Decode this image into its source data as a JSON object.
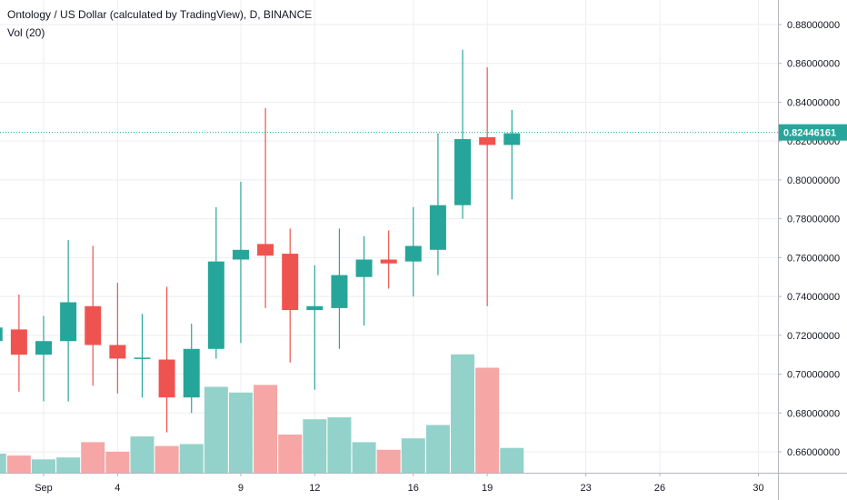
{
  "legend": {
    "title": "Ontology / US Dollar (calculated by TradingView), D, BINANCE",
    "indicator": "Vol (20)"
  },
  "colors": {
    "up": "#26a69a",
    "down": "#ef5350",
    "up_volume": "#93d2ca",
    "down_volume": "#f5a6a5",
    "grid": "#eceef2",
    "axis_line": "#b2b5be",
    "text": "#131722"
  },
  "chart_data": {
    "type": "candlestick",
    "symbol": "ONTUSD",
    "timeframe": "D",
    "exchange": "BINANCE",
    "y_axis": {
      "range": [
        0.648,
        0.886
      ],
      "ticks": [
        "0.66000000",
        "0.68000000",
        "0.70000000",
        "0.72000000",
        "0.74000000",
        "0.76000000",
        "0.78000000",
        "0.80000000",
        "0.82000000",
        "0.84000000",
        "0.86000000",
        "0.88000000"
      ],
      "tick_values": [
        0.66,
        0.68,
        0.7,
        0.72,
        0.74,
        0.76,
        0.78,
        0.8,
        0.82,
        0.84,
        0.86,
        0.88
      ]
    },
    "x_axis": {
      "ticks": [
        {
          "label": "Sep",
          "date": "2019-09-01"
        },
        {
          "label": "4",
          "date": "2019-09-04"
        },
        {
          "label": "9",
          "date": "2019-09-09"
        },
        {
          "label": "12",
          "date": "2019-09-12"
        },
        {
          "label": "16",
          "date": "2019-09-16"
        },
        {
          "label": "19",
          "date": "2019-09-19"
        },
        {
          "label": "23",
          "date": "2019-09-23"
        },
        {
          "label": "26",
          "date": "2019-09-26"
        },
        {
          "label": "30",
          "date": "2019-09-30"
        }
      ]
    },
    "last_price": {
      "value": 0.82446161,
      "label": "0.82446161"
    },
    "candles": [
      {
        "date": "2019-08-30",
        "open": 0.717,
        "high": 0.724,
        "low": 0.71,
        "close": 0.724
      },
      {
        "date": "2019-08-31",
        "open": 0.723,
        "high": 0.741,
        "low": 0.691,
        "close": 0.71
      },
      {
        "date": "2019-09-01",
        "open": 0.71,
        "high": 0.73,
        "low": 0.686,
        "close": 0.717
      },
      {
        "date": "2019-09-02",
        "open": 0.717,
        "high": 0.769,
        "low": 0.686,
        "close": 0.737
      },
      {
        "date": "2019-09-03",
        "open": 0.735,
        "high": 0.766,
        "low": 0.694,
        "close": 0.715
      },
      {
        "date": "2019-09-04",
        "open": 0.715,
        "high": 0.747,
        "low": 0.69,
        "close": 0.708
      },
      {
        "date": "2019-09-05",
        "open": 0.708,
        "high": 0.731,
        "low": 0.688,
        "close": 0.7085
      },
      {
        "date": "2019-09-06",
        "open": 0.7075,
        "high": 0.745,
        "low": 0.67,
        "close": 0.688
      },
      {
        "date": "2019-09-07",
        "open": 0.688,
        "high": 0.726,
        "low": 0.68,
        "close": 0.713
      },
      {
        "date": "2019-09-08",
        "open": 0.713,
        "high": 0.786,
        "low": 0.708,
        "close": 0.758
      },
      {
        "date": "2019-09-09",
        "open": 0.759,
        "high": 0.799,
        "low": 0.716,
        "close": 0.764
      },
      {
        "date": "2019-09-10",
        "open": 0.767,
        "high": 0.837,
        "low": 0.734,
        "close": 0.761
      },
      {
        "date": "2019-09-11",
        "open": 0.762,
        "high": 0.775,
        "low": 0.706,
        "close": 0.733
      },
      {
        "date": "2019-09-12",
        "open": 0.733,
        "high": 0.756,
        "low": 0.692,
        "close": 0.735
      },
      {
        "date": "2019-09-13",
        "open": 0.734,
        "high": 0.775,
        "low": 0.713,
        "close": 0.751
      },
      {
        "date": "2019-09-14",
        "open": 0.75,
        "high": 0.771,
        "low": 0.725,
        "close": 0.759
      },
      {
        "date": "2019-09-15",
        "open": 0.759,
        "high": 0.774,
        "low": 0.744,
        "close": 0.757
      },
      {
        "date": "2019-09-16",
        "open": 0.758,
        "high": 0.786,
        "low": 0.74,
        "close": 0.766
      },
      {
        "date": "2019-09-17",
        "open": 0.764,
        "high": 0.824,
        "low": 0.751,
        "close": 0.787
      },
      {
        "date": "2019-09-18",
        "open": 0.787,
        "high": 0.867,
        "low": 0.78,
        "close": 0.821
      },
      {
        "date": "2019-09-19",
        "open": 0.822,
        "high": 0.858,
        "low": 0.735,
        "close": 0.818
      },
      {
        "date": "2019-09-20",
        "open": 0.818,
        "high": 0.836,
        "low": 0.79,
        "close": 0.824
      }
    ],
    "volume": [
      {
        "date": "2019-08-30",
        "value": 0.1,
        "direction": "up"
      },
      {
        "date": "2019-08-31",
        "value": 0.09,
        "direction": "down"
      },
      {
        "date": "2019-09-01",
        "value": 0.07,
        "direction": "up"
      },
      {
        "date": "2019-09-02",
        "value": 0.08,
        "direction": "up"
      },
      {
        "date": "2019-09-03",
        "value": 0.16,
        "direction": "down"
      },
      {
        "date": "2019-09-04",
        "value": 0.11,
        "direction": "down"
      },
      {
        "date": "2019-09-05",
        "value": 0.19,
        "direction": "up"
      },
      {
        "date": "2019-09-06",
        "value": 0.14,
        "direction": "down"
      },
      {
        "date": "2019-09-07",
        "value": 0.15,
        "direction": "up"
      },
      {
        "date": "2019-09-08",
        "value": 0.45,
        "direction": "up"
      },
      {
        "date": "2019-09-09",
        "value": 0.42,
        "direction": "up"
      },
      {
        "date": "2019-09-10",
        "value": 0.46,
        "direction": "down"
      },
      {
        "date": "2019-09-11",
        "value": 0.2,
        "direction": "down"
      },
      {
        "date": "2019-09-12",
        "value": 0.28,
        "direction": "up"
      },
      {
        "date": "2019-09-13",
        "value": 0.29,
        "direction": "up"
      },
      {
        "date": "2019-09-14",
        "value": 0.16,
        "direction": "up"
      },
      {
        "date": "2019-09-15",
        "value": 0.12,
        "direction": "down"
      },
      {
        "date": "2019-09-16",
        "value": 0.18,
        "direction": "up"
      },
      {
        "date": "2019-09-17",
        "value": 0.25,
        "direction": "up"
      },
      {
        "date": "2019-09-18",
        "value": 0.62,
        "direction": "up"
      },
      {
        "date": "2019-09-19",
        "value": 0.55,
        "direction": "down"
      },
      {
        "date": "2019-09-20",
        "value": 0.13,
        "direction": "up"
      }
    ],
    "volume_scale_max": 1.0,
    "grid": true
  }
}
